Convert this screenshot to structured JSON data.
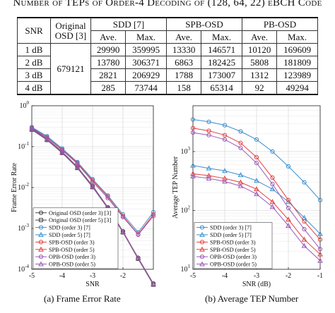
{
  "table": {
    "caption": "Number of TEPs of Order-4 Decoding of (128, 64, 22) eBCH Code",
    "headers": {
      "snr": "SNR",
      "original_osd": "Original OSD [3]",
      "sdd": "SDD [7]",
      "spb": "SPB-OSD",
      "pb": "PB-OSD",
      "ave": "Ave.",
      "max": "Max."
    },
    "original_value": "679121",
    "rows": [
      {
        "snr": "1 dB",
        "values": [
          "29990",
          "359995",
          "13330",
          "146571",
          "10120",
          "169609"
        ]
      },
      {
        "snr": "2 dB",
        "values": [
          "13780",
          "306371",
          "6863",
          "182425",
          "5808",
          "181809"
        ]
      },
      {
        "snr": "3 dB",
        "values": [
          "2821",
          "206929",
          "1788",
          "173007",
          "1312",
          "123989"
        ]
      },
      {
        "snr": "4 dB",
        "values": [
          "285",
          "73744",
          "158",
          "65314",
          "92",
          "49294"
        ]
      }
    ]
  },
  "captions": {
    "a": "(a) Frame Error Rate",
    "b": "(b) Average TEP Number"
  },
  "chart_data": [
    {
      "type": "line",
      "xlabel": "SNR",
      "ylabel": "Frame Error Rate",
      "yscale": "log",
      "xlim": [
        -5,
        -1
      ],
      "ylim": [
        0.0001,
        1
      ],
      "grid": true,
      "legend_position": "bottom-left",
      "xticks": [
        "-5",
        "-4",
        "-3",
        "-2"
      ],
      "yticks": [
        {
          "base": "10",
          "exp": "0"
        },
        {
          "base": "10",
          "exp": "-1"
        },
        {
          "base": "10",
          "exp": "-2"
        },
        {
          "base": "10",
          "exp": "-3"
        },
        {
          "base": "10",
          "exp": "-4"
        }
      ],
      "x": [
        -5,
        -4.5,
        -4,
        -3.5,
        -3,
        -2.5,
        -2,
        -1.5,
        -1
      ],
      "series": [
        {
          "name": "Original OSD (order 3) [3]",
          "color": "#444444",
          "marker": "circle",
          "values": [
            0.28,
            0.155,
            0.075,
            0.032,
            0.011,
            0.0033,
            0.00085,
            0.00019,
            4.5e-05
          ]
        },
        {
          "name": "Original OSD (order 5) [3]",
          "color": "#444444",
          "marker": "square",
          "values": [
            0.26,
            0.145,
            0.07,
            0.03,
            0.0102,
            0.0031,
            0.0008,
            0.00018,
            4.2e-05
          ]
        },
        {
          "name": "SDD (order 3) [7]",
          "color": "#3a8fd0",
          "marker": "circle",
          "values": [
            0.3,
            0.18,
            0.09,
            0.042,
            0.016,
            0.0064,
            0.0022,
            0.0008,
            0.0025
          ]
        },
        {
          "name": "SDD (order 5) [7]",
          "color": "#3a8fd0",
          "marker": "triangle",
          "values": [
            0.27,
            0.15,
            0.072,
            0.031,
            0.0105,
            0.0032,
            0.00082,
            0.00019,
            4.4e-05
          ]
        },
        {
          "name": "SPB-OSD (order 3)",
          "color": "#e04040",
          "marker": "circle",
          "values": [
            0.29,
            0.17,
            0.085,
            0.04,
            0.015,
            0.006,
            0.002,
            0.00072,
            0.0022
          ]
        },
        {
          "name": "SPB-OSD (order 5)",
          "color": "#e04040",
          "marker": "triangle",
          "values": [
            0.27,
            0.15,
            0.072,
            0.031,
            0.0105,
            0.0032,
            0.00082,
            0.00019,
            4.4e-05
          ]
        },
        {
          "name": "OPB-OSD (order 3)",
          "color": "#9b59b6",
          "marker": "circle",
          "values": [
            0.29,
            0.165,
            0.082,
            0.038,
            0.014,
            0.0055,
            0.0019,
            0.0007,
            0.002
          ]
        },
        {
          "name": "OPB-OSD (order 5)",
          "color": "#9b59b6",
          "marker": "triangle",
          "values": [
            0.27,
            0.15,
            0.072,
            0.031,
            0.0105,
            0.0032,
            0.00082,
            0.00019,
            4.4e-05
          ]
        }
      ]
    },
    {
      "type": "line",
      "xlabel": "SNR (dB)",
      "ylabel": "Average TEP Number",
      "yscale": "log",
      "xlim": [
        -5,
        -1
      ],
      "ylim": [
        10,
        6000
      ],
      "grid": true,
      "legend_position": "bottom-left",
      "xticks": [
        "-5",
        "-4",
        "-3",
        "-2",
        "-1"
      ],
      "yticks": [
        {
          "base": "10",
          "exp": "3"
        },
        {
          "base": "10",
          "exp": "2"
        },
        {
          "base": "10",
          "exp": "1"
        }
      ],
      "x": [
        -5,
        -4.5,
        -4,
        -3.5,
        -3,
        -2.5,
        -2,
        -1.5,
        -1
      ],
      "series": [
        {
          "name": "SDD (order 3) [7]",
          "color": "#3a8fd0",
          "marker": "circle",
          "values": [
            3500,
            3200,
            2800,
            2200,
            1600,
            1000,
            560,
            300,
            150
          ]
        },
        {
          "name": "SDD (order 5) [7]",
          "color": "#3a8fd0",
          "marker": "triangle",
          "values": [
            580,
            520,
            470,
            400,
            320,
            230,
            140,
            75,
            40
          ]
        },
        {
          "name": "SPB-OSD (order 3)",
          "color": "#e04040",
          "marker": "circle",
          "values": [
            2500,
            2250,
            1900,
            1400,
            800,
            360,
            150,
            65,
            32
          ]
        },
        {
          "name": "SPB-OSD (order 5)",
          "color": "#e04040",
          "marker": "triangle",
          "values": [
            420,
            390,
            350,
            300,
            230,
            140,
            70,
            32,
            18
          ]
        },
        {
          "name": "OPB-OSD (order 3)",
          "color": "#9b59b6",
          "marker": "circle",
          "values": [
            2100,
            1900,
            1600,
            1150,
            640,
            280,
            110,
            48,
            22
          ]
        },
        {
          "name": "OPB-OSD (order 5)",
          "color": "#9b59b6",
          "marker": "triangle",
          "values": [
            380,
            350,
            310,
            260,
            190,
            115,
            55,
            25,
            14
          ]
        }
      ]
    }
  ]
}
